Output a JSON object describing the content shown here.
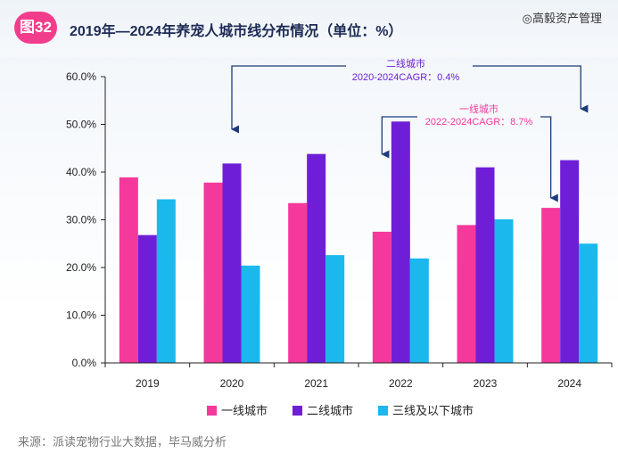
{
  "header": {
    "badge": "图32",
    "title": "2019年—2024年养宠人城市线分布情况（单位：%）",
    "watermark": "◎高毅资产管理"
  },
  "source": "来源：派读宠物行业大数据，毕马威分析",
  "colors": {
    "tier1": "#f5389b",
    "tier2": "#6f1ed8",
    "tier3": "#1bb8ee",
    "ann2": "#6f1ed8",
    "ann1": "#f5389b",
    "arrow": "#1d3b7a"
  },
  "chart_data": {
    "type": "bar",
    "title": "2019年—2024年养宠人城市线分布情况（单位：%）",
    "categories": [
      "2019",
      "2020",
      "2021",
      "2022",
      "2023",
      "2024"
    ],
    "series": [
      {
        "name": "一线城市",
        "values": [
          38.9,
          37.8,
          33.5,
          27.5,
          28.9,
          32.5
        ]
      },
      {
        "name": "二线城市",
        "values": [
          26.8,
          41.8,
          43.8,
          50.6,
          41.0,
          42.5
        ]
      },
      {
        "name": "三线及以下城市",
        "values": [
          34.3,
          20.4,
          22.6,
          21.9,
          30.1,
          25.0
        ]
      }
    ],
    "yticks": [
      "0.0%",
      "10.0%",
      "20.0%",
      "30.0%",
      "40.0%",
      "50.0%",
      "60.0%"
    ],
    "ylim": [
      0,
      60
    ],
    "legend_position": "bottom",
    "annotations": [
      {
        "line1": "二线城市",
        "line2": "2020-2024CAGR：0.4%"
      },
      {
        "line1": "一线城市",
        "line2": "2022-2024CAGR：8.7%"
      }
    ]
  }
}
